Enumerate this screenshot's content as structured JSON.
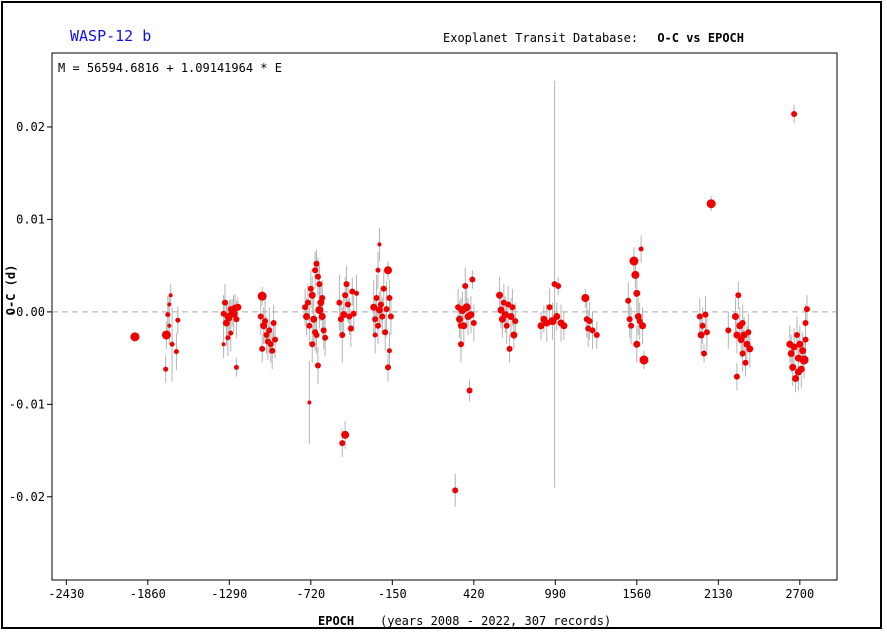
{
  "header": {
    "planet": "WASP-12 b",
    "database": "Exoplanet Transit Database:",
    "plot_kind": "O-C vs EPOCH"
  },
  "colors": {
    "points": "#ee0000",
    "errorbars": "#b4b4b4",
    "reference_line": "#a8a8a8",
    "planet_title": "#1010ee"
  },
  "chart_data": {
    "type": "scatter",
    "ephemeris": "M = 56594.6816 + 1.09141964 * E",
    "xlabel": "EPOCH",
    "xlabel_note": "(years 2008 - 2022, 307 records)",
    "ylabel": "O-C (d)",
    "xlim": [
      -2530,
      2960
    ],
    "ylim": [
      -0.029,
      0.028
    ],
    "xticks": [
      -2430,
      -1860,
      -1290,
      -720,
      -150,
      420,
      990,
      1560,
      2130,
      2700
    ],
    "yticks": [
      -0.02,
      -0.01,
      0.0,
      0.01,
      0.02
    ],
    "ytick_labels": [
      "-0.02",
      "-0.01",
      "-0.00",
      "0.01",
      "0.02"
    ],
    "reference_line_y": 0.0,
    "points": [
      {
        "x": -1950,
        "y": -0.0027,
        "err": 0.0005,
        "size": 8
      },
      {
        "x": -1730,
        "y": -0.0025,
        "err": 0.0015,
        "size": 8
      },
      {
        "x": -1720,
        "y": -0.0003,
        "err": 0.002,
        "size": 4
      },
      {
        "x": -1710,
        "y": 0.0008,
        "err": 0.001,
        "size": 3
      },
      {
        "x": -1700,
        "y": 0.0018,
        "err": 0.0012,
        "size": 3
      },
      {
        "x": -1735,
        "y": -0.0062,
        "err": 0.0015,
        "size": 4
      },
      {
        "x": -1690,
        "y": -0.0035,
        "err": 0.004,
        "size": 4
      },
      {
        "x": -1660,
        "y": -0.0043,
        "err": 0.002,
        "size": 4
      },
      {
        "x": -1650,
        "y": -0.0009,
        "err": 0.0015,
        "size": 4
      },
      {
        "x": -1710,
        "y": -0.0015,
        "err": 0.002,
        "size": 3
      },
      {
        "x": -1330,
        "y": -0.0002,
        "err": 0.002,
        "size": 5
      },
      {
        "x": -1320,
        "y": 0.001,
        "err": 0.002,
        "size": 5
      },
      {
        "x": -1310,
        "y": -0.0012,
        "err": 0.0025,
        "size": 6
      },
      {
        "x": -1300,
        "y": -0.0005,
        "err": 0.0015,
        "size": 6
      },
      {
        "x": -1290,
        "y": -0.0007,
        "err": 0.002,
        "size": 5
      },
      {
        "x": -1280,
        "y": 0.0003,
        "err": 0.001,
        "size": 5
      },
      {
        "x": -1270,
        "y": -0.0001,
        "err": 0.0015,
        "size": 6
      },
      {
        "x": -1260,
        "y": -0.0002,
        "err": 0.002,
        "size": 7
      },
      {
        "x": -1250,
        "y": 0.0004,
        "err": 0.0015,
        "size": 6
      },
      {
        "x": -1240,
        "y": -0.0008,
        "err": 0.002,
        "size": 5
      },
      {
        "x": -1230,
        "y": 0.0005,
        "err": 0.001,
        "size": 6
      },
      {
        "x": -1300,
        "y": -0.0028,
        "err": 0.002,
        "size": 4
      },
      {
        "x": -1280,
        "y": -0.0023,
        "err": 0.002,
        "size": 4
      },
      {
        "x": -1330,
        "y": -0.0035,
        "err": 0.0015,
        "size": 3
      },
      {
        "x": -1240,
        "y": -0.006,
        "err": 0.001,
        "size": 4
      },
      {
        "x": -1060,
        "y": 0.0017,
        "err": 0.001,
        "size": 8
      },
      {
        "x": -1070,
        "y": -0.0005,
        "err": 0.002,
        "size": 5
      },
      {
        "x": -1050,
        "y": -0.0015,
        "err": 0.002,
        "size": 6
      },
      {
        "x": -1040,
        "y": -0.001,
        "err": 0.0025,
        "size": 5
      },
      {
        "x": -1030,
        "y": -0.0025,
        "err": 0.002,
        "size": 5
      },
      {
        "x": -1020,
        "y": -0.0032,
        "err": 0.002,
        "size": 5
      },
      {
        "x": -1010,
        "y": -0.002,
        "err": 0.0025,
        "size": 5
      },
      {
        "x": -1000,
        "y": -0.0035,
        "err": 0.002,
        "size": 5
      },
      {
        "x": -990,
        "y": -0.0042,
        "err": 0.002,
        "size": 5
      },
      {
        "x": -1060,
        "y": -0.004,
        "err": 0.0015,
        "size": 5
      },
      {
        "x": -980,
        "y": -0.0012,
        "err": 0.002,
        "size": 5
      },
      {
        "x": -970,
        "y": -0.003,
        "err": 0.002,
        "size": 5
      },
      {
        "x": -760,
        "y": 0.0005,
        "err": 0.002,
        "size": 5
      },
      {
        "x": -750,
        "y": -0.0005,
        "err": 0.002,
        "size": 6
      },
      {
        "x": -740,
        "y": 0.001,
        "err": 0.002,
        "size": 5
      },
      {
        "x": -730,
        "y": -0.0015,
        "err": 0.002,
        "size": 5
      },
      {
        "x": -720,
        "y": 0.0025,
        "err": 0.002,
        "size": 5
      },
      {
        "x": -710,
        "y": 0.0018,
        "err": 0.002,
        "size": 6
      },
      {
        "x": -700,
        "y": -0.0008,
        "err": 0.003,
        "size": 6
      },
      {
        "x": -690,
        "y": 0.0045,
        "err": 0.002,
        "size": 5
      },
      {
        "x": -680,
        "y": 0.0052,
        "err": 0.0015,
        "size": 5
      },
      {
        "x": -670,
        "y": 0.0038,
        "err": 0.002,
        "size": 5
      },
      {
        "x": -660,
        "y": 0.003,
        "err": 0.002,
        "size": 5
      },
      {
        "x": -650,
        "y": 0.001,
        "err": 0.002,
        "size": 6
      },
      {
        "x": -640,
        "y": -0.0005,
        "err": 0.002,
        "size": 6
      },
      {
        "x": -630,
        "y": -0.002,
        "err": 0.002,
        "size": 5
      },
      {
        "x": -620,
        "y": -0.0028,
        "err": 0.002,
        "size": 5
      },
      {
        "x": -710,
        "y": -0.0035,
        "err": 0.002,
        "size": 5
      },
      {
        "x": -690,
        "y": -0.0022,
        "err": 0.002,
        "size": 5
      },
      {
        "x": -670,
        "y": -0.0058,
        "err": 0.002,
        "size": 5
      },
      {
        "x": -660,
        "y": 0.0002,
        "err": 0.002,
        "size": 7
      },
      {
        "x": -730,
        "y": -0.0098,
        "err": 0.0045,
        "size": 3
      },
      {
        "x": -680,
        "y": -0.0025,
        "err": 0.002,
        "size": 5
      },
      {
        "x": -640,
        "y": 0.0015,
        "err": 0.002,
        "size": 5
      },
      {
        "x": -520,
        "y": 0.001,
        "err": 0.003,
        "size": 5
      },
      {
        "x": -510,
        "y": -0.0008,
        "err": 0.002,
        "size": 5
      },
      {
        "x": -500,
        "y": -0.0025,
        "err": 0.003,
        "size": 5
      },
      {
        "x": -490,
        "y": -0.0003,
        "err": 0.002,
        "size": 6
      },
      {
        "x": -480,
        "y": 0.0018,
        "err": 0.002,
        "size": 5
      },
      {
        "x": -470,
        "y": 0.003,
        "err": 0.002,
        "size": 5
      },
      {
        "x": -460,
        "y": 0.0008,
        "err": 0.002,
        "size": 5
      },
      {
        "x": -450,
        "y": -0.0005,
        "err": 0.002,
        "size": 5
      },
      {
        "x": -440,
        "y": -0.0018,
        "err": 0.002,
        "size": 5
      },
      {
        "x": -430,
        "y": 0.0022,
        "err": 0.0015,
        "size": 5
      },
      {
        "x": -420,
        "y": -0.0002,
        "err": 0.002,
        "size": 5
      },
      {
        "x": -400,
        "y": 0.002,
        "err": 0.002,
        "size": 4
      },
      {
        "x": -500,
        "y": -0.0142,
        "err": 0.0015,
        "size": 5
      },
      {
        "x": -480,
        "y": -0.0133,
        "err": 0.0015,
        "size": 7
      },
      {
        "x": -280,
        "y": 0.0005,
        "err": 0.003,
        "size": 6
      },
      {
        "x": -270,
        "y": -0.0008,
        "err": 0.002,
        "size": 5
      },
      {
        "x": -260,
        "y": 0.0015,
        "err": 0.0025,
        "size": 5
      },
      {
        "x": -250,
        "y": -0.0015,
        "err": 0.002,
        "size": 5
      },
      {
        "x": -240,
        "y": 0.0002,
        "err": 0.002,
        "size": 6
      },
      {
        "x": -230,
        "y": 0.0008,
        "err": 0.002,
        "size": 5
      },
      {
        "x": -220,
        "y": -0.0005,
        "err": 0.002,
        "size": 5
      },
      {
        "x": -210,
        "y": 0.0025,
        "err": 0.002,
        "size": 5
      },
      {
        "x": -240,
        "y": 0.0073,
        "err": 0.0018,
        "size": 3
      },
      {
        "x": -250,
        "y": 0.0045,
        "err": 0.002,
        "size": 4
      },
      {
        "x": -200,
        "y": -0.0022,
        "err": 0.002,
        "size": 5
      },
      {
        "x": -190,
        "y": 0.0003,
        "err": 0.003,
        "size": 5
      },
      {
        "x": -180,
        "y": 0.0045,
        "err": 0.001,
        "size": 7
      },
      {
        "x": -170,
        "y": 0.0015,
        "err": 0.002,
        "size": 5
      },
      {
        "x": -160,
        "y": -0.0005,
        "err": 0.002,
        "size": 5
      },
      {
        "x": -180,
        "y": -0.006,
        "err": 0.0015,
        "size": 5
      },
      {
        "x": -170,
        "y": -0.0042,
        "err": 0.002,
        "size": 4
      },
      {
        "x": -270,
        "y": -0.0025,
        "err": 0.002,
        "size": 4
      },
      {
        "x": 310,
        "y": 0.0005,
        "err": 0.002,
        "size": 5
      },
      {
        "x": 320,
        "y": -0.0008,
        "err": 0.002,
        "size": 6
      },
      {
        "x": 330,
        "y": -0.0035,
        "err": 0.002,
        "size": 5
      },
      {
        "x": 340,
        "y": 0.0002,
        "err": 0.002,
        "size": 7
      },
      {
        "x": 350,
        "y": -0.0015,
        "err": 0.002,
        "size": 6
      },
      {
        "x": 360,
        "y": 0.0028,
        "err": 0.002,
        "size": 5
      },
      {
        "x": 370,
        "y": 0.0005,
        "err": 0.002,
        "size": 7
      },
      {
        "x": 380,
        "y": -0.0005,
        "err": 0.002,
        "size": 6
      },
      {
        "x": 390,
        "y": -0.0085,
        "err": 0.0012,
        "size": 5
      },
      {
        "x": 400,
        "y": -0.0003,
        "err": 0.002,
        "size": 6
      },
      {
        "x": 410,
        "y": 0.0035,
        "err": 0.001,
        "size": 5
      },
      {
        "x": 420,
        "y": -0.0012,
        "err": 0.002,
        "size": 5
      },
      {
        "x": 290,
        "y": -0.0193,
        "err": 0.0018,
        "size": 5
      },
      {
        "x": 330,
        "y": -0.0015,
        "err": 0.003,
        "size": 5
      },
      {
        "x": 600,
        "y": 0.0018,
        "err": 0.002,
        "size": 6
      },
      {
        "x": 610,
        "y": 0.0002,
        "err": 0.002,
        "size": 6
      },
      {
        "x": 620,
        "y": -0.0008,
        "err": 0.002,
        "size": 6
      },
      {
        "x": 630,
        "y": 0.001,
        "err": 0.002,
        "size": 5
      },
      {
        "x": 640,
        "y": -0.0003,
        "err": 0.002,
        "size": 6
      },
      {
        "x": 650,
        "y": -0.0015,
        "err": 0.002,
        "size": 5
      },
      {
        "x": 660,
        "y": 0.0008,
        "err": 0.002,
        "size": 5
      },
      {
        "x": 670,
        "y": -0.004,
        "err": 0.0015,
        "size": 5
      },
      {
        "x": 680,
        "y": -0.0005,
        "err": 0.002,
        "size": 6
      },
      {
        "x": 690,
        "y": 0.0005,
        "err": 0.002,
        "size": 5
      },
      {
        "x": 700,
        "y": -0.0025,
        "err": 0.0015,
        "size": 6
      },
      {
        "x": 710,
        "y": -0.001,
        "err": 0.002,
        "size": 5
      },
      {
        "x": 890,
        "y": -0.0015,
        "err": 0.0015,
        "size": 6
      },
      {
        "x": 910,
        "y": -0.0008,
        "err": 0.0015,
        "size": 6
      },
      {
        "x": 930,
        "y": -0.0012,
        "err": 0.002,
        "size": 6
      },
      {
        "x": 950,
        "y": 0.0005,
        "err": 0.002,
        "size": 5
      },
      {
        "x": 970,
        "y": -0.001,
        "err": 0.002,
        "size": 7
      },
      {
        "x": 985,
        "y": 0.003,
        "err": 0.022,
        "size": 5
      },
      {
        "x": 1000,
        "y": -0.0005,
        "err": 0.0015,
        "size": 6
      },
      {
        "x": 1010,
        "y": 0.0028,
        "err": 0.001,
        "size": 5
      },
      {
        "x": 1030,
        "y": -0.0012,
        "err": 0.002,
        "size": 6
      },
      {
        "x": 1050,
        "y": -0.0015,
        "err": 0.0015,
        "size": 6
      },
      {
        "x": 1200,
        "y": 0.0015,
        "err": 0.001,
        "size": 7
      },
      {
        "x": 1210,
        "y": -0.0008,
        "err": 0.002,
        "size": 5
      },
      {
        "x": 1220,
        "y": -0.0018,
        "err": 0.002,
        "size": 5
      },
      {
        "x": 1230,
        "y": -0.001,
        "err": 0.002,
        "size": 5
      },
      {
        "x": 1250,
        "y": -0.002,
        "err": 0.002,
        "size": 5
      },
      {
        "x": 1280,
        "y": -0.0025,
        "err": 0.0015,
        "size": 5
      },
      {
        "x": 1500,
        "y": 0.0012,
        "err": 0.002,
        "size": 5
      },
      {
        "x": 1510,
        "y": -0.0008,
        "err": 0.002,
        "size": 5
      },
      {
        "x": 1520,
        "y": -0.0015,
        "err": 0.002,
        "size": 5
      },
      {
        "x": 1540,
        "y": 0.0055,
        "err": 0.0015,
        "size": 8
      },
      {
        "x": 1550,
        "y": 0.004,
        "err": 0.0015,
        "size": 7
      },
      {
        "x": 1560,
        "y": 0.002,
        "err": 0.002,
        "size": 6
      },
      {
        "x": 1570,
        "y": -0.0005,
        "err": 0.002,
        "size": 6
      },
      {
        "x": 1580,
        "y": -0.001,
        "err": 0.002,
        "size": 5
      },
      {
        "x": 1590,
        "y": 0.0068,
        "err": 0.0015,
        "size": 4
      },
      {
        "x": 1600,
        "y": -0.0015,
        "err": 0.002,
        "size": 6
      },
      {
        "x": 1610,
        "y": -0.0052,
        "err": 0.001,
        "size": 8
      },
      {
        "x": 1560,
        "y": -0.0035,
        "err": 0.002,
        "size": 6
      },
      {
        "x": 2000,
        "y": -0.0005,
        "err": 0.002,
        "size": 5
      },
      {
        "x": 2010,
        "y": -0.0025,
        "err": 0.002,
        "size": 6
      },
      {
        "x": 2020,
        "y": -0.0015,
        "err": 0.002,
        "size": 5
      },
      {
        "x": 2030,
        "y": -0.0045,
        "err": 0.001,
        "size": 5
      },
      {
        "x": 2040,
        "y": -0.0003,
        "err": 0.002,
        "size": 5
      },
      {
        "x": 2050,
        "y": -0.0022,
        "err": 0.002,
        "size": 5
      },
      {
        "x": 2080,
        "y": 0.0117,
        "err": 0.0008,
        "size": 8
      },
      {
        "x": 2200,
        "y": -0.002,
        "err": 0.002,
        "size": 5
      },
      {
        "x": 2250,
        "y": -0.0005,
        "err": 0.002,
        "size": 6
      },
      {
        "x": 2260,
        "y": -0.0025,
        "err": 0.002,
        "size": 6
      },
      {
        "x": 2270,
        "y": 0.0018,
        "err": 0.0015,
        "size": 5
      },
      {
        "x": 2280,
        "y": -0.0015,
        "err": 0.002,
        "size": 6
      },
      {
        "x": 2290,
        "y": -0.003,
        "err": 0.002,
        "size": 6
      },
      {
        "x": 2300,
        "y": -0.0045,
        "err": 0.002,
        "size": 5
      },
      {
        "x": 2310,
        "y": -0.0025,
        "err": 0.002,
        "size": 6
      },
      {
        "x": 2320,
        "y": -0.0055,
        "err": 0.0015,
        "size": 5
      },
      {
        "x": 2330,
        "y": -0.0035,
        "err": 0.002,
        "size": 6
      },
      {
        "x": 2340,
        "y": -0.0022,
        "err": 0.002,
        "size": 5
      },
      {
        "x": 2350,
        "y": -0.004,
        "err": 0.002,
        "size": 6
      },
      {
        "x": 2260,
        "y": -0.007,
        "err": 0.0015,
        "size": 5
      },
      {
        "x": 2300,
        "y": -0.0012,
        "err": 0.002,
        "size": 5
      },
      {
        "x": 2630,
        "y": -0.0035,
        "err": 0.002,
        "size": 6
      },
      {
        "x": 2640,
        "y": -0.0045,
        "err": 0.002,
        "size": 6
      },
      {
        "x": 2650,
        "y": -0.006,
        "err": 0.002,
        "size": 6
      },
      {
        "x": 2660,
        "y": -0.0038,
        "err": 0.002,
        "size": 6
      },
      {
        "x": 2670,
        "y": -0.0072,
        "err": 0.0015,
        "size": 6
      },
      {
        "x": 2680,
        "y": -0.0025,
        "err": 0.002,
        "size": 5
      },
      {
        "x": 2690,
        "y": -0.005,
        "err": 0.002,
        "size": 6
      },
      {
        "x": 2700,
        "y": -0.0035,
        "err": 0.002,
        "size": 6
      },
      {
        "x": 2710,
        "y": -0.0062,
        "err": 0.002,
        "size": 6
      },
      {
        "x": 2720,
        "y": -0.0042,
        "err": 0.002,
        "size": 6
      },
      {
        "x": 2730,
        "y": -0.0052,
        "err": 0.002,
        "size": 8
      },
      {
        "x": 2740,
        "y": -0.003,
        "err": 0.002,
        "size": 5
      },
      {
        "x": 2750,
        "y": 0.0003,
        "err": 0.0015,
        "size": 5
      },
      {
        "x": 2740,
        "y": -0.0012,
        "err": 0.002,
        "size": 5
      },
      {
        "x": 2660,
        "y": 0.0214,
        "err": 0.001,
        "size": 5
      },
      {
        "x": 2690,
        "y": -0.0065,
        "err": 0.002,
        "size": 6
      }
    ]
  }
}
